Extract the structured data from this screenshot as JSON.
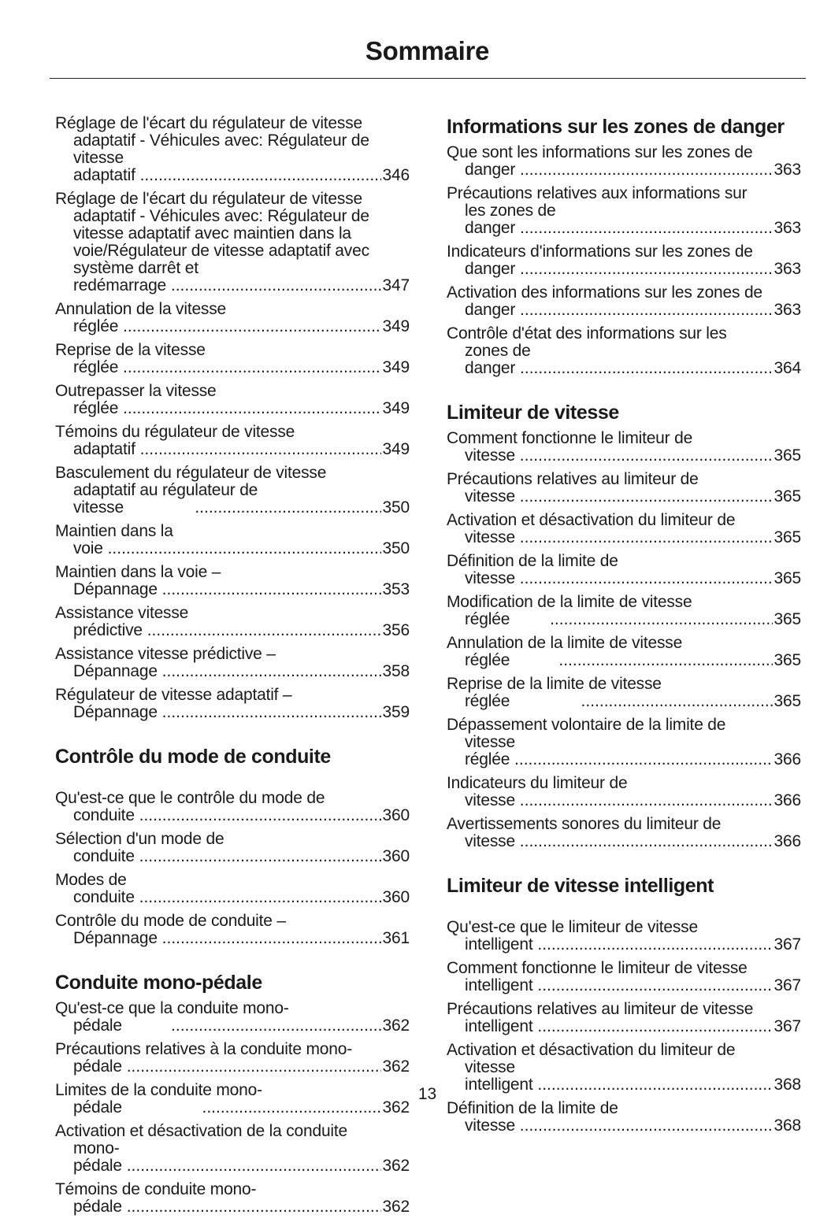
{
  "title": "Sommaire",
  "page_number": "13",
  "left_column": [
    {
      "type": "entry",
      "text": "Réglage de l'écart du régulateur de vitesse adaptatif - Véhicules avec: Régulateur de vitesse adaptatif",
      "page": "346"
    },
    {
      "type": "entry",
      "text": "Réglage de l'écart du régulateur de vitesse adaptatif - Véhicules avec: Régulateur de vitesse adaptatif avec maintien dans la voie/Régulateur de vitesse adaptatif avec système darrêt et redémarrage",
      "page": "347"
    },
    {
      "type": "entry",
      "text": "Annulation de la vitesse réglée",
      "page": "349"
    },
    {
      "type": "entry",
      "text": "Reprise de la vitesse réglée",
      "page": "349"
    },
    {
      "type": "entry",
      "text": "Outrepasser la vitesse réglée",
      "page": "349"
    },
    {
      "type": "entry",
      "text": "Témoins du régulateur de vitesse adaptatif",
      "page": "349"
    },
    {
      "type": "entry",
      "text": "Basculement du régulateur de vitesse adaptatif au régulateur de vitesse               ",
      "page": "350"
    },
    {
      "type": "entry",
      "text": "Maintien dans la voie",
      "page": "350"
    },
    {
      "type": "entry",
      "text": "Maintien dans la voie – Dépannage",
      "page": "353"
    },
    {
      "type": "entry",
      "text": "Assistance vitesse prédictive",
      "page": "356"
    },
    {
      "type": "entry",
      "text": "Assistance vitesse prédictive – Dépannage",
      "page": "358"
    },
    {
      "type": "entry",
      "text": "Régulateur de vitesse adaptatif – Dépannage",
      "page": "359"
    },
    {
      "type": "heading",
      "text": "Contrôle du mode de conduite",
      "style": "gap bigafter"
    },
    {
      "type": "entry",
      "text": "Qu'est-ce que le contrôle du mode de conduite",
      "page": "360"
    },
    {
      "type": "entry",
      "text": "Sélection d'un mode de conduite",
      "page": "360"
    },
    {
      "type": "entry",
      "text": "Modes de conduite",
      "page": "360"
    },
    {
      "type": "entry",
      "text": "Contrôle du mode de conduite – Dépannage",
      "page": "361"
    },
    {
      "type": "heading",
      "text": "Conduite mono-pédale",
      "style": "gap"
    },
    {
      "type": "entry",
      "text": "Qu'est-ce que la conduite mono-pédale          ",
      "page": "362"
    },
    {
      "type": "entry",
      "text": "Précautions relatives à la conduite mono-pédale",
      "page": "362"
    },
    {
      "type": "entry",
      "text": "Limites de la conduite mono-pédale                 ",
      "page": "362"
    },
    {
      "type": "entry",
      "text": "Activation et désactivation de la conduite mono-pédale",
      "page": "362"
    },
    {
      "type": "entry",
      "text": "Témoins de conduite mono-pédale",
      "page": "362"
    }
  ],
  "right_column": [
    {
      "type": "heading",
      "text": "Informations sur les zones de danger",
      "style": ""
    },
    {
      "type": "entry",
      "text": "Que sont les informations sur les zones de danger",
      "page": "363"
    },
    {
      "type": "entry",
      "text": "Précautions relatives aux informations sur les zones de danger",
      "page": "363"
    },
    {
      "type": "entry",
      "text": "Indicateurs d'informations sur les zones de danger",
      "page": "363"
    },
    {
      "type": "entry",
      "text": "Activation des informations sur les zones de danger",
      "page": "363"
    },
    {
      "type": "entry",
      "text": "Contrôle d'état des informations sur les zones de danger",
      "page": "364"
    },
    {
      "type": "heading",
      "text": "Limiteur de vitesse",
      "style": "gap"
    },
    {
      "type": "entry",
      "text": "Comment fonctionne le limiteur de vitesse",
      "page": "365"
    },
    {
      "type": "entry",
      "text": "Précautions relatives au limiteur de vitesse",
      "page": "365"
    },
    {
      "type": "entry",
      "text": "Activation et désactivation du limiteur de vitesse",
      "page": "365"
    },
    {
      "type": "entry",
      "text": "Définition de la limite de vitesse",
      "page": "365"
    },
    {
      "type": "entry",
      "text": "Modification de la limite de vitesse réglée        ",
      "page": "365"
    },
    {
      "type": "entry",
      "text": "Annulation de la limite de vitesse réglée          ",
      "page": "365"
    },
    {
      "type": "entry",
      "text": "Reprise de la limite de vitesse réglée               ",
      "page": "365"
    },
    {
      "type": "entry",
      "text": "Dépassement volontaire de la limite de vitesse réglée",
      "page": "366"
    },
    {
      "type": "entry",
      "text": "Indicateurs du limiteur de vitesse",
      "page": "366"
    },
    {
      "type": "entry",
      "text": "Avertissements sonores du limiteur de vitesse",
      "page": "366"
    },
    {
      "type": "heading",
      "text": "Limiteur de vitesse intelligent",
      "style": "gap bigafter"
    },
    {
      "type": "entry",
      "text": "Qu'est-ce que le limiteur de vitesse intelligent",
      "page": "367"
    },
    {
      "type": "entry",
      "text": "Comment fonctionne le limiteur de vitesse intelligent",
      "page": "367"
    },
    {
      "type": "entry",
      "text": "Précautions relatives au limiteur de vitesse intelligent",
      "page": "367"
    },
    {
      "type": "entry",
      "text": "Activation et désactivation du limiteur de vitesse intelligent",
      "page": "368"
    },
    {
      "type": "entry",
      "text": "Définition de la limite de vitesse",
      "page": "368"
    }
  ]
}
